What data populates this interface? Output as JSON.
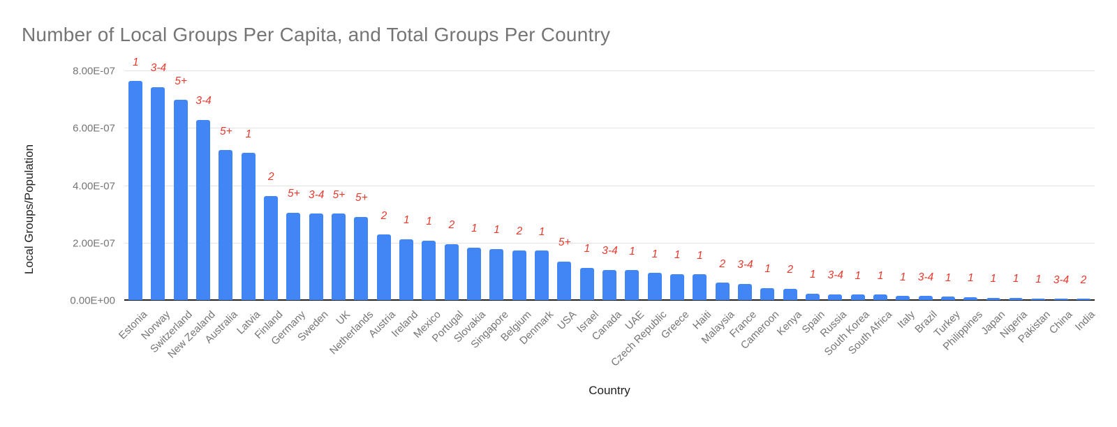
{
  "chart_data": {
    "type": "bar",
    "title": "Number of Local Groups Per Capita, and Total Groups Per Country",
    "xlabel": "Country",
    "ylabel": "Local Groups/Population",
    "ylim": [
      0,
      8e-07
    ],
    "y_ticks": [
      "0.00E+00",
      "2.00E-07",
      "4.00E-07",
      "6.00E-07",
      "8.00E-07"
    ],
    "grid": true,
    "legend": "none",
    "categories": [
      "Estonia",
      "Norway",
      "Switzerland",
      "New Zealand",
      "Australia",
      "Latvia",
      "Finland",
      "Germany",
      "Sweden",
      "UK",
      "Netherlands",
      "Austria",
      "Ireland",
      "Mexico",
      "Portugal",
      "Slovakia",
      "Singapore",
      "Belgium",
      "Denmark",
      "USA",
      "Israel",
      "Canada",
      "UAE",
      "Czech Republic",
      "Greece",
      "Haiti",
      "Malaysia",
      "France",
      "Cameroon",
      "Kenya",
      "Spain",
      "Russia",
      "South Korea",
      "South Africa",
      "Italy",
      "Brazil",
      "Turkey",
      "Philippines",
      "Japan",
      "Nigeria",
      "Pakistan",
      "China",
      "India"
    ],
    "series": [
      {
        "name": "Local Groups Per Capita",
        "values": [
          7.6e-07,
          7.4e-07,
          6.95e-07,
          6.25e-07,
          5.2e-07,
          5.1e-07,
          3.6e-07,
          3.02e-07,
          2.98e-07,
          2.98e-07,
          2.88e-07,
          2.25e-07,
          2.1e-07,
          2.05e-07,
          1.93e-07,
          1.8e-07,
          1.76e-07,
          1.71e-07,
          1.7e-07,
          1.32e-07,
          1.1e-07,
          1.03e-07,
          1.02e-07,
          9.2e-08,
          8.8e-08,
          8.7e-08,
          5.8e-08,
          5.4e-08,
          4e-08,
          3.7e-08,
          2e-08,
          1.8e-08,
          1.7e-08,
          1.6e-08,
          1.2e-08,
          1.1e-08,
          9e-09,
          8e-09,
          5e-09,
          5e-09,
          3e-09,
          2e-09,
          1.5e-09
        ]
      },
      {
        "name": "Total Groups Per Country",
        "values": [
          "1",
          "3-4",
          "5+",
          "3-4",
          "5+",
          "1",
          "2",
          "5+",
          "3-4",
          "5+",
          "5+",
          "2",
          "1",
          "1",
          "2",
          "1",
          "1",
          "2",
          "1",
          "5+",
          "1",
          "3-4",
          "1",
          "1",
          "1",
          "1",
          "2",
          "3-4",
          "1",
          "2",
          "1",
          "3-4",
          "1",
          "1",
          "1",
          "3-4",
          "1",
          "1",
          "1",
          "1",
          "1",
          "3-4",
          "2"
        ]
      }
    ],
    "colors": {
      "bar": "#4285f4",
      "annotation": "#e8392d",
      "gridline": "#e3e3e3",
      "axis_line": "#212121",
      "title_text": "#757575",
      "tick_text": "#757575",
      "axis_title_text": "#1f1f1f",
      "background": "#ffffff"
    }
  }
}
